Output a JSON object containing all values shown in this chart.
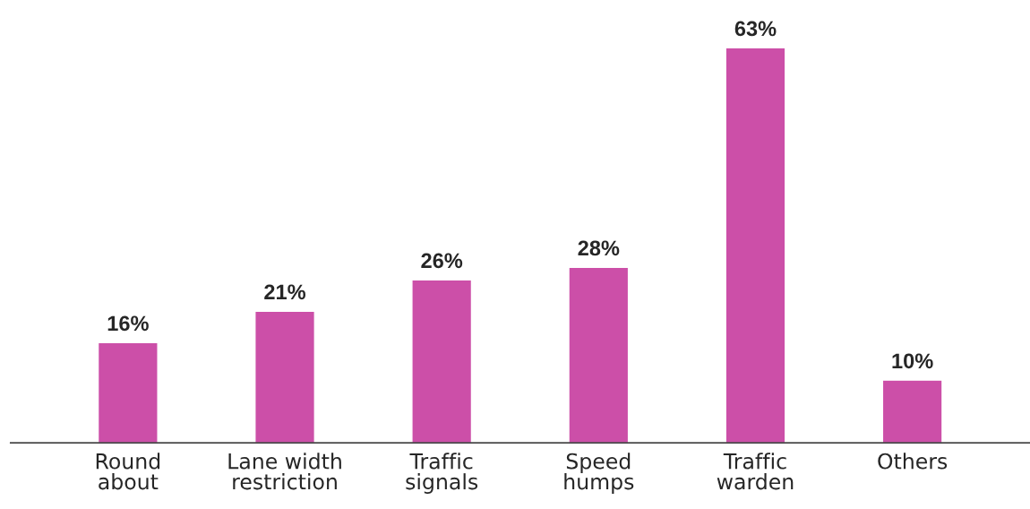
{
  "chart_data": {
    "type": "bar",
    "categories": [
      "Round\nabout",
      "Lane width\nrestriction",
      "Traffic\nsignals",
      "Speed\nhumps",
      "Traffic\nwarden",
      "Others"
    ],
    "values": [
      16,
      21,
      26,
      28,
      63,
      10
    ],
    "value_labels": [
      "16%",
      "21%",
      "26%",
      "28%",
      "63%",
      "10%"
    ],
    "color": "#cc4fa8",
    "tick_labels": "x",
    "grid": false,
    "legend": false
  }
}
